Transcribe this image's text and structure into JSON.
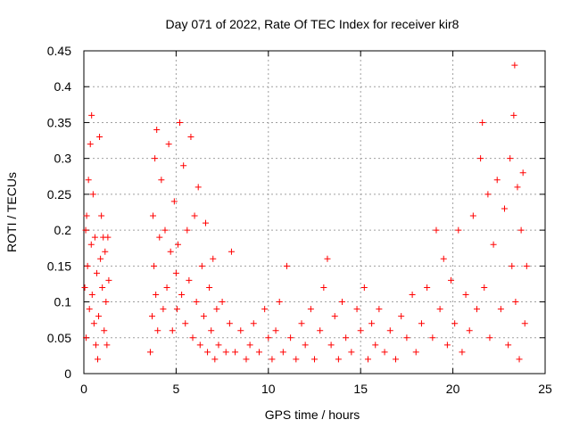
{
  "chart_data": {
    "type": "scatter",
    "title": "Day 071 of 2022, Rate Of TEC Index for receiver kir8",
    "xlabel": "GPS time / hours",
    "ylabel": "ROTI / TECUs",
    "xlim": [
      0,
      25
    ],
    "ylim": [
      0,
      0.45
    ],
    "x_ticks": [
      0,
      5,
      10,
      15,
      20,
      25
    ],
    "y_ticks": [
      0,
      0.05,
      0.1,
      0.15,
      0.2,
      0.25,
      0.3,
      0.35,
      0.4,
      0.45
    ],
    "x_tick_labels": [
      "0",
      "5",
      "10",
      "15",
      "20",
      "25"
    ],
    "y_tick_labels": [
      "0",
      "0.05",
      "0.1",
      "0.15",
      "0.2",
      "0.25",
      "0.3",
      "0.35",
      "0.4",
      "0.45"
    ],
    "grid": true,
    "marker": "+",
    "color": "#ff0000",
    "series": [
      {
        "points": [
          [
            0.05,
            0.12
          ],
          [
            0.1,
            0.2
          ],
          [
            0.12,
            0.05
          ],
          [
            0.15,
            0.22
          ],
          [
            0.2,
            0.15
          ],
          [
            0.25,
            0.27
          ],
          [
            0.3,
            0.09
          ],
          [
            0.35,
            0.32
          ],
          [
            0.4,
            0.18
          ],
          [
            0.42,
            0.36
          ],
          [
            0.45,
            0.11
          ],
          [
            0.5,
            0.25
          ],
          [
            0.55,
            0.07
          ],
          [
            0.6,
            0.19
          ],
          [
            0.65,
            0.04
          ],
          [
            0.7,
            0.14
          ],
          [
            0.75,
            0.02
          ],
          [
            0.8,
            0.08
          ],
          [
            0.85,
            0.33
          ],
          [
            0.9,
            0.16
          ],
          [
            0.95,
            0.22
          ],
          [
            1.0,
            0.12
          ],
          [
            1.05,
            0.19
          ],
          [
            1.1,
            0.06
          ],
          [
            1.15,
            0.17
          ],
          [
            1.2,
            0.1
          ],
          [
            1.25,
            0.04
          ],
          [
            1.3,
            0.19
          ],
          [
            1.35,
            0.13
          ],
          [
            3.6,
            0.03
          ],
          [
            3.7,
            0.08
          ],
          [
            3.75,
            0.22
          ],
          [
            3.8,
            0.15
          ],
          [
            3.85,
            0.3
          ],
          [
            3.9,
            0.11
          ],
          [
            3.95,
            0.34
          ],
          [
            4.0,
            0.06
          ],
          [
            4.1,
            0.19
          ],
          [
            4.2,
            0.27
          ],
          [
            4.3,
            0.09
          ],
          [
            4.4,
            0.2
          ],
          [
            4.5,
            0.12
          ],
          [
            4.6,
            0.32
          ],
          [
            4.7,
            0.17
          ],
          [
            4.8,
            0.06
          ],
          [
            4.9,
            0.24
          ],
          [
            5.0,
            0.14
          ],
          [
            5.05,
            0.09
          ],
          [
            5.1,
            0.18
          ],
          [
            5.2,
            0.35
          ],
          [
            5.3,
            0.11
          ],
          [
            5.4,
            0.29
          ],
          [
            5.5,
            0.07
          ],
          [
            5.6,
            0.2
          ],
          [
            5.7,
            0.13
          ],
          [
            5.8,
            0.33
          ],
          [
            5.9,
            0.05
          ],
          [
            6.0,
            0.22
          ],
          [
            6.1,
            0.1
          ],
          [
            6.2,
            0.26
          ],
          [
            6.3,
            0.04
          ],
          [
            6.4,
            0.15
          ],
          [
            6.5,
            0.08
          ],
          [
            6.6,
            0.21
          ],
          [
            6.7,
            0.03
          ],
          [
            6.8,
            0.12
          ],
          [
            6.9,
            0.06
          ],
          [
            7.0,
            0.16
          ],
          [
            7.1,
            0.02
          ],
          [
            7.2,
            0.09
          ],
          [
            7.3,
            0.04
          ],
          [
            7.5,
            0.1
          ],
          [
            7.7,
            0.03
          ],
          [
            7.9,
            0.07
          ],
          [
            8.0,
            0.17
          ],
          [
            8.2,
            0.03
          ],
          [
            8.5,
            0.06
          ],
          [
            8.8,
            0.02
          ],
          [
            9.0,
            0.04
          ],
          [
            9.2,
            0.07
          ],
          [
            9.5,
            0.03
          ],
          [
            9.8,
            0.09
          ],
          [
            10.0,
            0.05
          ],
          [
            10.2,
            0.02
          ],
          [
            10.4,
            0.06
          ],
          [
            10.6,
            0.1
          ],
          [
            10.8,
            0.03
          ],
          [
            11.0,
            0.15
          ],
          [
            11.2,
            0.05
          ],
          [
            11.5,
            0.02
          ],
          [
            11.8,
            0.07
          ],
          [
            12.0,
            0.04
          ],
          [
            12.3,
            0.09
          ],
          [
            12.5,
            0.02
          ],
          [
            12.8,
            0.06
          ],
          [
            13.0,
            0.12
          ],
          [
            13.2,
            0.16
          ],
          [
            13.4,
            0.04
          ],
          [
            13.6,
            0.08
          ],
          [
            13.8,
            0.02
          ],
          [
            14.0,
            0.1
          ],
          [
            14.2,
            0.05
          ],
          [
            14.5,
            0.03
          ],
          [
            14.8,
            0.09
          ],
          [
            15.0,
            0.06
          ],
          [
            15.2,
            0.12
          ],
          [
            15.4,
            0.02
          ],
          [
            15.6,
            0.07
          ],
          [
            15.8,
            0.04
          ],
          [
            16.0,
            0.09
          ],
          [
            16.3,
            0.03
          ],
          [
            16.6,
            0.06
          ],
          [
            16.9,
            0.02
          ],
          [
            17.2,
            0.08
          ],
          [
            17.5,
            0.05
          ],
          [
            17.8,
            0.11
          ],
          [
            18.0,
            0.03
          ],
          [
            18.3,
            0.07
          ],
          [
            18.6,
            0.12
          ],
          [
            18.9,
            0.05
          ],
          [
            19.1,
            0.2
          ],
          [
            19.3,
            0.09
          ],
          [
            19.5,
            0.16
          ],
          [
            19.7,
            0.04
          ],
          [
            19.9,
            0.13
          ],
          [
            20.1,
            0.07
          ],
          [
            20.3,
            0.2
          ],
          [
            20.5,
            0.03
          ],
          [
            20.7,
            0.11
          ],
          [
            20.9,
            0.06
          ],
          [
            21.1,
            0.22
          ],
          [
            21.3,
            0.09
          ],
          [
            21.5,
            0.3
          ],
          [
            21.6,
            0.35
          ],
          [
            21.7,
            0.12
          ],
          [
            21.9,
            0.25
          ],
          [
            22.0,
            0.05
          ],
          [
            22.2,
            0.18
          ],
          [
            22.4,
            0.27
          ],
          [
            22.6,
            0.09
          ],
          [
            22.8,
            0.23
          ],
          [
            23.0,
            0.04
          ],
          [
            23.1,
            0.3
          ],
          [
            23.2,
            0.15
          ],
          [
            23.3,
            0.36
          ],
          [
            23.35,
            0.43
          ],
          [
            23.4,
            0.1
          ],
          [
            23.5,
            0.26
          ],
          [
            23.6,
            0.02
          ],
          [
            23.7,
            0.2
          ],
          [
            23.8,
            0.28
          ],
          [
            23.9,
            0.07
          ],
          [
            24.0,
            0.15
          ]
        ]
      }
    ]
  }
}
